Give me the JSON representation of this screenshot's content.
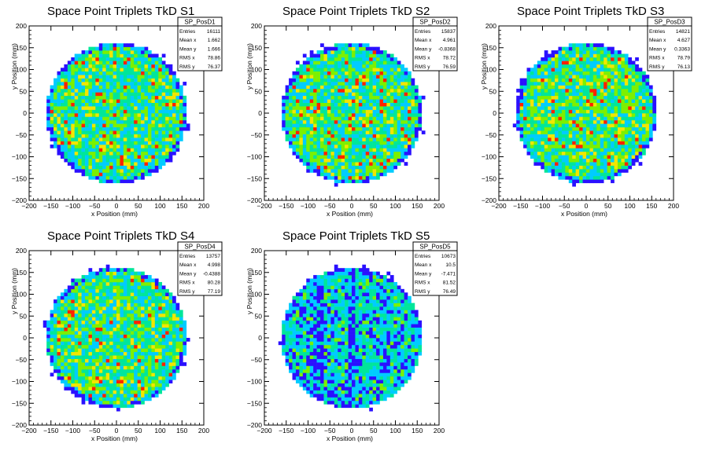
{
  "chart_data": [
    {
      "type": "heatmap",
      "title": "Space Point Triplets TkD S1",
      "xlabel": "x Position (mm)",
      "ylabel": "y Position (mm)",
      "xlim": [
        -200,
        200
      ],
      "ylim": [
        -200,
        200
      ],
      "xticks": [
        "−200",
        "−150",
        "−100",
        "−50",
        "0",
        "50",
        "100",
        "150",
        "200"
      ],
      "yticks": [
        "200",
        "150",
        "100",
        "50",
        "0",
        "−50",
        "−100",
        "−150",
        "−200"
      ],
      "distribution": "uniform-disc",
      "disc_radius": 160,
      "stats": {
        "title": "SP_PosD1",
        "rows": [
          {
            "label": "Entries",
            "value": "16111"
          },
          {
            "label": "Mean x",
            "value": "1.662"
          },
          {
            "label": "Mean y",
            "value": "1.666"
          },
          {
            "label": "RMS x",
            "value": "78.86"
          },
          {
            "label": "RMS y",
            "value": "76.37"
          }
        ]
      }
    },
    {
      "type": "heatmap",
      "title": "Space Point Triplets TkD S2",
      "xlabel": "x Position (mm)",
      "ylabel": "y Position (mm)",
      "xlim": [
        -200,
        200
      ],
      "ylim": [
        -200,
        200
      ],
      "xticks": [
        "−200",
        "−150",
        "−100",
        "−50",
        "0",
        "50",
        "100",
        "150",
        "200"
      ],
      "yticks": [
        "200",
        "150",
        "100",
        "50",
        "0",
        "−50",
        "−100",
        "−150",
        "−200"
      ],
      "distribution": "uniform-disc",
      "disc_radius": 160,
      "stats": {
        "title": "SP_PosD2",
        "rows": [
          {
            "label": "Entries",
            "value": "15837"
          },
          {
            "label": "Mean x",
            "value": "4.961"
          },
          {
            "label": "Mean y",
            "value": "-0.8368"
          },
          {
            "label": "RMS x",
            "value": "78.72"
          },
          {
            "label": "RMS y",
            "value": "76.59"
          }
        ]
      }
    },
    {
      "type": "heatmap",
      "title": "Space Point Triplets TkD S3",
      "xlabel": "x Position (mm)",
      "ylabel": "y Position (mm)",
      "xlim": [
        -200,
        200
      ],
      "ylim": [
        -200,
        200
      ],
      "xticks": [
        "−200",
        "−150",
        "−100",
        "−50",
        "0",
        "50",
        "100",
        "150",
        "200"
      ],
      "yticks": [
        "200",
        "150",
        "100",
        "50",
        "0",
        "−50",
        "−100",
        "−150",
        "−200"
      ],
      "distribution": "uniform-disc",
      "disc_radius": 160,
      "stats": {
        "title": "SP_PosD3",
        "rows": [
          {
            "label": "Entries",
            "value": "14821"
          },
          {
            "label": "Mean x",
            "value": "4.627"
          },
          {
            "label": "Mean y",
            "value": "0.3363"
          },
          {
            "label": "RMS x",
            "value": "78.79"
          },
          {
            "label": "RMS y",
            "value": "76.13"
          }
        ]
      }
    },
    {
      "type": "heatmap",
      "title": "Space Point Triplets TkD S4",
      "xlabel": "x Position (mm)",
      "ylabel": "y Position (mm)",
      "xlim": [
        -200,
        200
      ],
      "ylim": [
        -200,
        200
      ],
      "xticks": [
        "−200",
        "−150",
        "−100",
        "−50",
        "0",
        "50",
        "100",
        "150",
        "200"
      ],
      "yticks": [
        "200",
        "150",
        "100",
        "50",
        "0",
        "−50",
        "−100",
        "−150",
        "−200"
      ],
      "distribution": "uniform-disc",
      "disc_radius": 160,
      "stats": {
        "title": "SP_PosD4",
        "rows": [
          {
            "label": "Entries",
            "value": "13757"
          },
          {
            "label": "Mean x",
            "value": "4.998"
          },
          {
            "label": "Mean y",
            "value": "-0.4388"
          },
          {
            "label": "RMS x",
            "value": "80.28"
          },
          {
            "label": "RMS y",
            "value": "77.19"
          }
        ]
      }
    },
    {
      "type": "heatmap",
      "title": "Space Point Triplets TkD S5",
      "xlabel": "x Position (mm)",
      "ylabel": "y Position (mm)",
      "xlim": [
        -200,
        200
      ],
      "ylim": [
        -200,
        200
      ],
      "xticks": [
        "−200",
        "−150",
        "−100",
        "−50",
        "0",
        "50",
        "100",
        "150",
        "200"
      ],
      "yticks": [
        "200",
        "150",
        "100",
        "50",
        "0",
        "−50",
        "−100",
        "−150",
        "−200"
      ],
      "distribution": "disc-with-low-band",
      "disc_radius": 160,
      "low_band_x": [
        -90,
        -60
      ],
      "stats": {
        "title": "SP_PosD5",
        "rows": [
          {
            "label": "Entries",
            "value": "10673"
          },
          {
            "label": "Mean x",
            "value": "10.5"
          },
          {
            "label": "Mean y",
            "value": "-7.471"
          },
          {
            "label": "RMS x",
            "value": "81.52"
          },
          {
            "label": "RMS y",
            "value": "76.49"
          }
        ]
      }
    }
  ],
  "palette": [
    "#2a10ff",
    "#00ccff",
    "#00e69a",
    "#7cf000",
    "#f2e600",
    "#ff2200"
  ]
}
